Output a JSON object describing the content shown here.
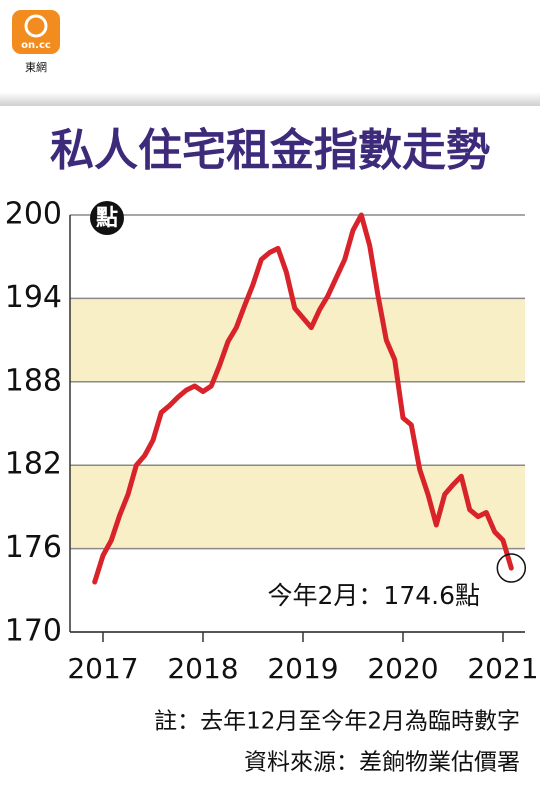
{
  "logo": {
    "mark": "on.cc",
    "name": "東網"
  },
  "chart_data": {
    "type": "line",
    "title": "私人住宅租金指數走勢",
    "unit_badge": "點",
    "annotation": "今年2月：174.6點",
    "notes": [
      "註：去年12月至今年2月為臨時數字",
      "資料來源：差餉物業估價署"
    ],
    "x": [
      2016.917,
      2017,
      2017.083,
      2017.167,
      2017.25,
      2017.333,
      2017.417,
      2017.5,
      2017.583,
      2017.667,
      2017.75,
      2017.833,
      2017.917,
      2018,
      2018.083,
      2018.167,
      2018.25,
      2018.333,
      2018.417,
      2018.5,
      2018.583,
      2018.667,
      2018.75,
      2018.833,
      2018.917,
      2019,
      2019.083,
      2019.167,
      2019.25,
      2019.333,
      2019.417,
      2019.5,
      2019.583,
      2019.667,
      2019.75,
      2019.833,
      2019.917,
      2020,
      2020.083,
      2020.167,
      2020.25,
      2020.333,
      2020.417,
      2020.5,
      2020.583,
      2020.667,
      2020.75,
      2020.833,
      2020.917,
      2021,
      2021.083
    ],
    "values": [
      173.6,
      175.5,
      176.6,
      178.4,
      179.9,
      182.0,
      182.7,
      183.8,
      185.8,
      186.3,
      186.9,
      187.4,
      187.7,
      187.3,
      187.7,
      189.2,
      190.9,
      191.9,
      193.5,
      195.0,
      196.8,
      197.3,
      197.6,
      195.9,
      193.3,
      192.6,
      191.9,
      193.2,
      194.2,
      195.5,
      196.8,
      198.9,
      200.0,
      197.8,
      194.2,
      191.0,
      189.6,
      185.4,
      184.9,
      181.7,
      179.9,
      177.7,
      179.9,
      180.6,
      181.2,
      178.8,
      178.3,
      178.6,
      177.2,
      176.6,
      174.6
    ],
    "color": "#d9232a",
    "xlim": [
      2016.67,
      2021.22
    ],
    "xticks": [
      2017,
      2018,
      2019,
      2020,
      2021
    ],
    "ylim": [
      170,
      200
    ],
    "yticks": [
      170,
      176,
      182,
      188,
      194,
      200
    ],
    "bands": [
      [
        188,
        194
      ],
      [
        176,
        182
      ]
    ],
    "band_color": "#f8efc6",
    "grid": true
  }
}
